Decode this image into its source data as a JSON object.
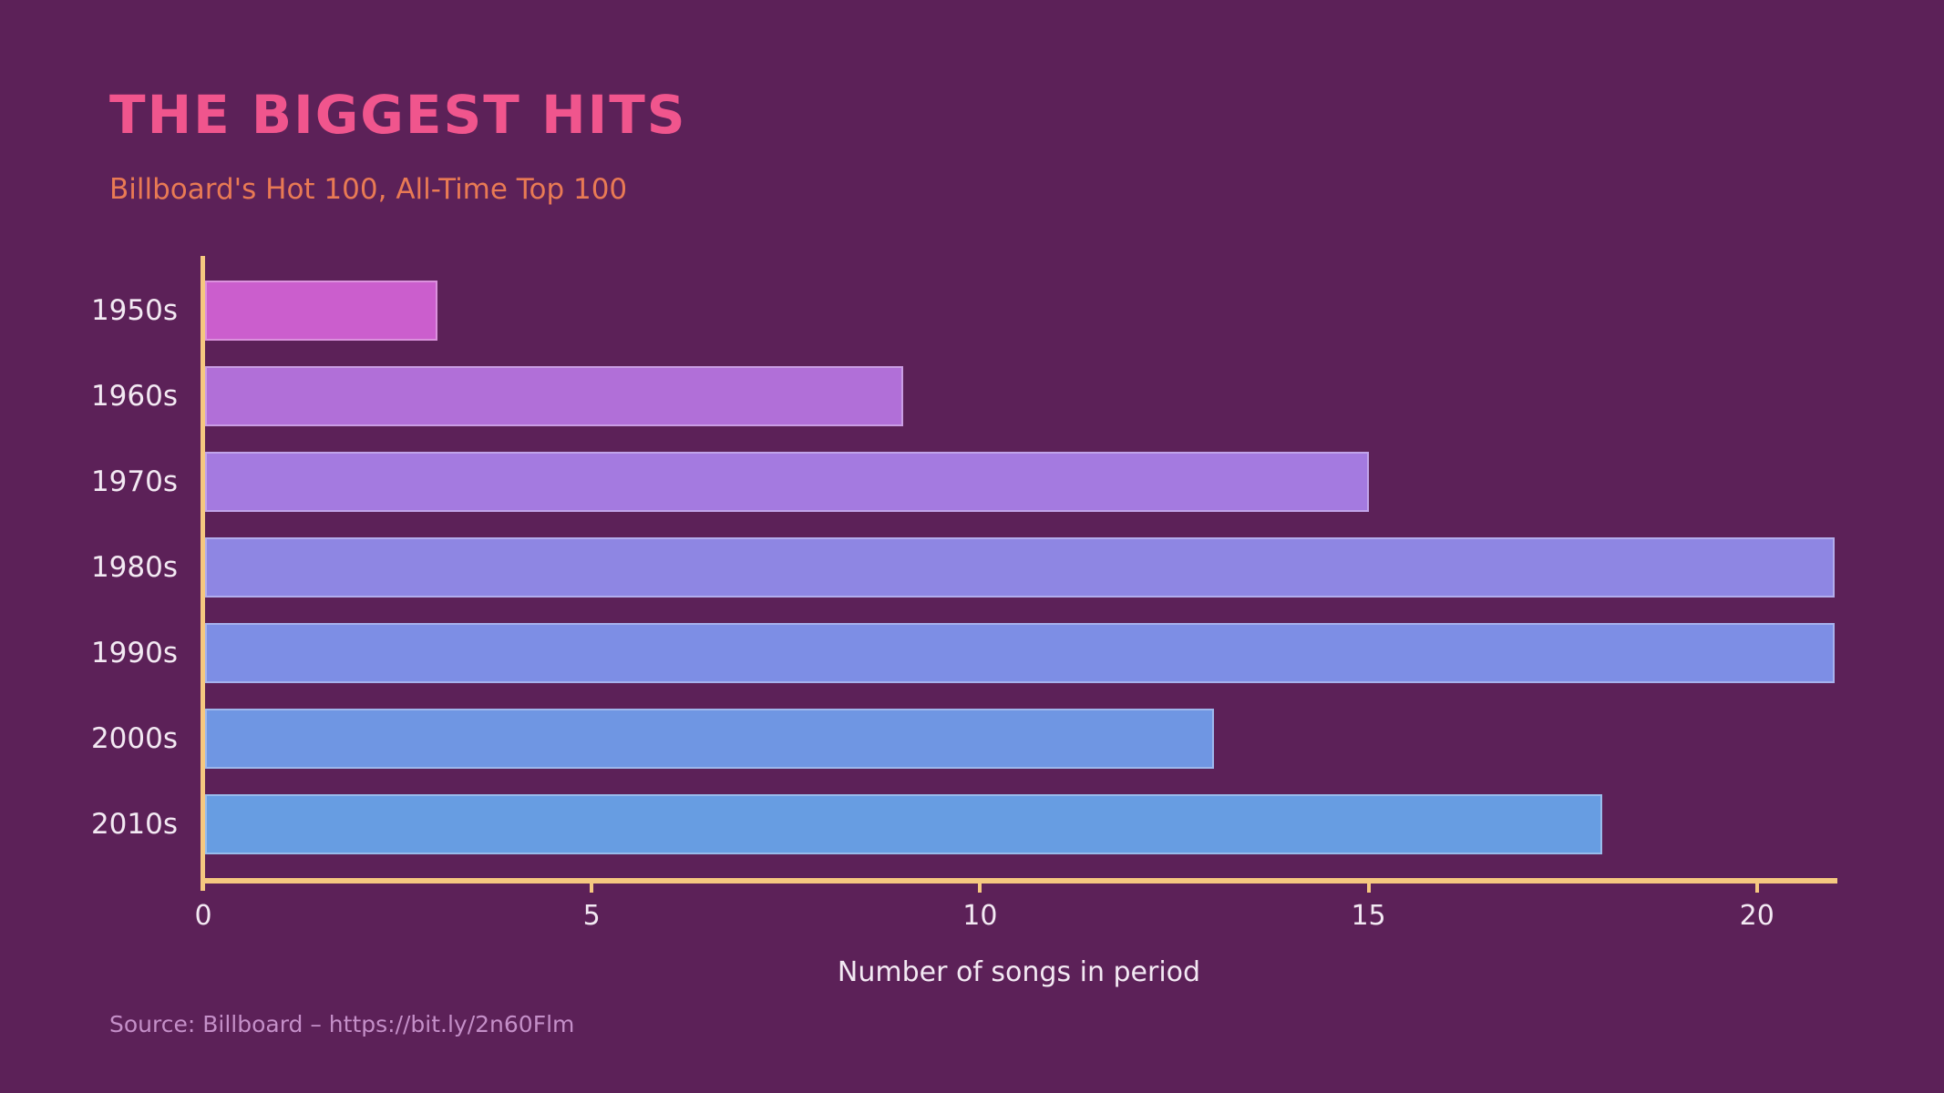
{
  "chart_data": {
    "type": "bar",
    "orientation": "horizontal",
    "title": "THE BIGGEST HITS",
    "subtitle": "Billboard's Hot 100, All-Time Top 100",
    "xlabel": "Number of songs in period",
    "source": "Source: Billboard – https://bit.ly/2n60Flm",
    "categories": [
      "1950s",
      "1960s",
      "1970s",
      "1980s",
      "1990s",
      "2000s",
      "2010s"
    ],
    "values": [
      3,
      9,
      15,
      21,
      21,
      13,
      18
    ],
    "xlim": [
      0,
      21
    ],
    "xticks": [
      0,
      5,
      10,
      15,
      20
    ],
    "grid": false,
    "legend": false,
    "bar_colors": [
      "#cb5ecd",
      "#b16fd8",
      "#a47ae0",
      "#8e86e3",
      "#7d8ee5",
      "#6f96e3",
      "#679de2"
    ],
    "colors": {
      "background": "#5c2158",
      "title": "#f0558d",
      "subtitle": "#e97a54",
      "axis": "#f5c880",
      "tick_text": "#f3e9f3",
      "source_text": "#c48fc8"
    }
  }
}
